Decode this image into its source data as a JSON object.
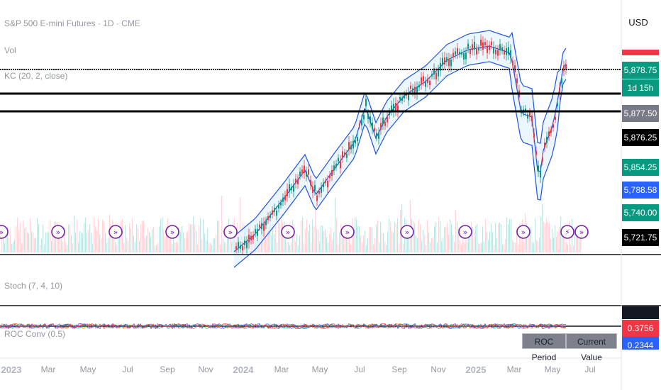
{
  "header": {
    "symbol_title": "S&P 500 E-mini Futures · 1D · CME",
    "currency": "USD"
  },
  "legends": {
    "volume": "Vol",
    "keltner": "KC (20, 2, close)",
    "stoch": "Stoch (7, 4, 10)",
    "roc": "ROC Conv (0.5)"
  },
  "price_scale": {
    "tags": [
      {
        "text": "5,878.75",
        "color": "#089981"
      },
      {
        "text": "1d 15h",
        "color": "#089981"
      },
      {
        "text": "5,877.50",
        "color": "#787b86"
      },
      {
        "text": "5,876.25",
        "color": "#000000"
      },
      {
        "text": "5,854.25",
        "color": "#089981"
      },
      {
        "text": "5,788.58",
        "color": "#2962ff"
      },
      {
        "text": "5,740.00",
        "color": "#089981"
      },
      {
        "text": "5,721.75",
        "color": "#000000"
      }
    ],
    "lower_tags": [
      {
        "text": "0.3756",
        "color": "#f23645"
      },
      {
        "text": "0.2344",
        "color": "#2962ff"
      }
    ]
  },
  "roc_table": {
    "col1": "ROC Period",
    "col2": "Current Value"
  },
  "time_axis": [
    {
      "label": "2023",
      "bold": true
    },
    {
      "label": "Mar",
      "bold": false
    },
    {
      "label": "May",
      "bold": false
    },
    {
      "label": "Jul",
      "bold": false
    },
    {
      "label": "Sep",
      "bold": false
    },
    {
      "label": "Nov",
      "bold": false
    },
    {
      "label": "2024",
      "bold": true
    },
    {
      "label": "Mar",
      "bold": false
    },
    {
      "label": "May",
      "bold": false
    },
    {
      "label": "Jul",
      "bold": false
    },
    {
      "label": "Sep",
      "bold": false
    },
    {
      "label": "Nov",
      "bold": false
    },
    {
      "label": "2025",
      "bold": true
    },
    {
      "label": "Mar",
      "bold": false
    },
    {
      "label": "May",
      "bold": false
    },
    {
      "label": "Jul",
      "bold": false
    }
  ],
  "colors": {
    "up": "#089981",
    "down": "#f23645",
    "band": "#1e53e5",
    "band_fill": "#e3f2fd",
    "event_icon": "#7b1fa2"
  },
  "chart_data": {
    "type": "line",
    "title": "S&P 500 E-mini Futures · 1D · CME",
    "xlabel": "",
    "ylabel": "",
    "series": [
      {
        "name": "KC (20, 2, close)",
        "values": []
      }
    ],
    "price_levels": [
      5878.75,
      5877.5,
      5876.25,
      5854.25,
      5788.58,
      5740.0,
      5721.75
    ],
    "grid": false,
    "legend_position": "top-left"
  }
}
